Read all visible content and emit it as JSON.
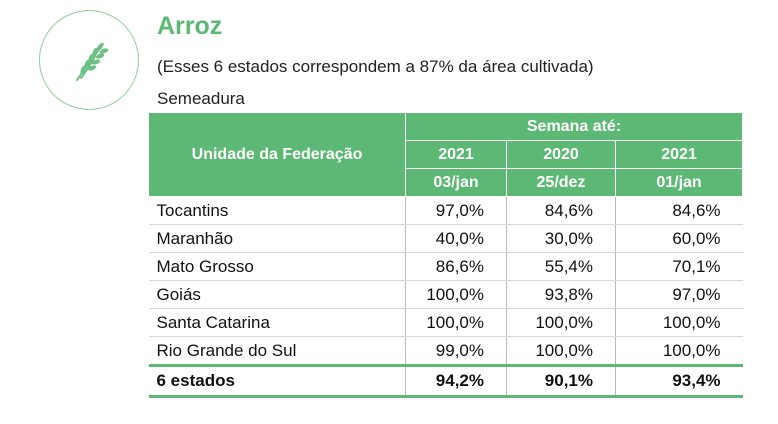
{
  "header": {
    "icon": "rice-plant-icon",
    "accent_color": "#5cb874",
    "title": "Arroz",
    "subtitle": "(Esses 6 estados correspondem a 87% da área cultivada)",
    "caption": "Semeadura"
  },
  "table": {
    "state_header": "Unidade da Federação",
    "group_header": "Semana até:",
    "columns": [
      {
        "year": "2021",
        "date": "03/jan"
      },
      {
        "year": "2020",
        "date": "25/dez"
      },
      {
        "year": "2021",
        "date": "01/jan"
      }
    ],
    "rows": [
      {
        "state": "Tocantins",
        "values": [
          "97,0%",
          "84,6%",
          "84,6%"
        ]
      },
      {
        "state": "Maranhão",
        "values": [
          "40,0%",
          "30,0%",
          "60,0%"
        ]
      },
      {
        "state": "Mato Grosso",
        "values": [
          "86,6%",
          "55,4%",
          "70,1%"
        ]
      },
      {
        "state": "Goiás",
        "values": [
          "100,0%",
          "93,8%",
          "97,0%"
        ]
      },
      {
        "state": "Santa Catarina",
        "values": [
          "100,0%",
          "100,0%",
          "100,0%"
        ]
      },
      {
        "state": "Rio Grande do Sul",
        "values": [
          "99,0%",
          "100,0%",
          "100,0%"
        ]
      }
    ],
    "total": {
      "state": "6 estados",
      "values": [
        "94,2%",
        "90,1%",
        "93,4%"
      ]
    }
  }
}
